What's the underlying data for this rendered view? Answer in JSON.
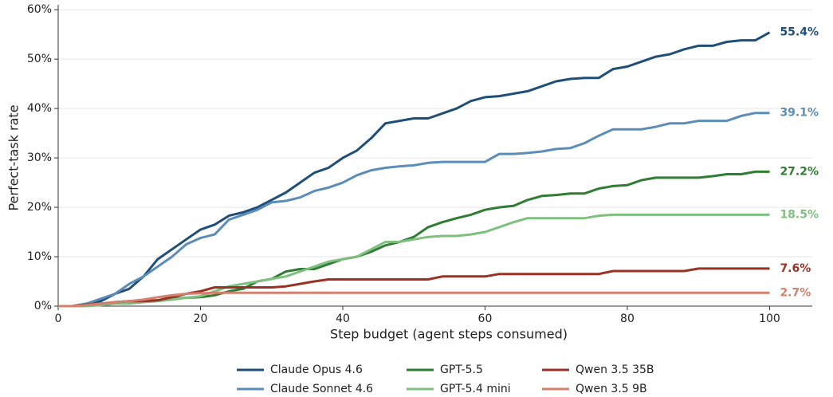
{
  "chart_data": {
    "type": "line",
    "xlabel": "Step budget (agent steps consumed)",
    "ylabel": "Perfect-task rate",
    "xlim": [
      0,
      106
    ],
    "ylim": [
      0,
      61
    ],
    "xticks": [
      0,
      20,
      40,
      60,
      80,
      100
    ],
    "yticks": [
      {
        "value": 0,
        "label": "0%"
      },
      {
        "value": 10,
        "label": "10%"
      },
      {
        "value": 20,
        "label": "20%"
      },
      {
        "value": 30,
        "label": "30%"
      },
      {
        "value": 40,
        "label": "40%"
      },
      {
        "value": 50,
        "label": "50%"
      },
      {
        "value": 60,
        "label": "60%"
      }
    ],
    "grid": true,
    "legend": "bottom",
    "x": [
      0,
      2,
      4,
      6,
      8,
      10,
      12,
      14,
      16,
      18,
      20,
      22,
      24,
      26,
      28,
      30,
      32,
      34,
      36,
      38,
      40,
      42,
      44,
      46,
      48,
      50,
      52,
      54,
      56,
      58,
      60,
      62,
      64,
      66,
      68,
      70,
      72,
      74,
      76,
      78,
      80,
      82,
      84,
      86,
      88,
      90,
      92,
      94,
      96,
      98,
      100
    ],
    "series": [
      {
        "name": "Claude Opus 4.6",
        "color": "#1f4e79",
        "end_label": "55.4%",
        "values": [
          0,
          0,
          0.5,
          1,
          2.5,
          3.5,
          6,
          9.5,
          11.5,
          13.5,
          15.5,
          16.5,
          18.3,
          19,
          20,
          21.5,
          23,
          25,
          27,
          28,
          30,
          31.5,
          34,
          37,
          37.5,
          38,
          38,
          39,
          40,
          41.5,
          42.3,
          42.5,
          43,
          43.5,
          44.5,
          45.5,
          46,
          46.2,
          46.2,
          48,
          48.5,
          49.5,
          50.5,
          51,
          52,
          52.7,
          52.7,
          53.5,
          53.8,
          53.8,
          55.4
        ]
      },
      {
        "name": "Claude Sonnet 4.6",
        "color": "#5b8db8",
        "end_label": "39.1%",
        "values": [
          0,
          0,
          0.5,
          1.5,
          2.5,
          4.5,
          6,
          8,
          10,
          12.5,
          13.8,
          14.5,
          17.5,
          18.5,
          19.5,
          21,
          21.3,
          22,
          23.3,
          24,
          25,
          26.5,
          27.5,
          28,
          28.3,
          28.5,
          29,
          29.2,
          29.2,
          29.2,
          29.2,
          30.8,
          30.8,
          31,
          31.3,
          31.8,
          32,
          33,
          34.5,
          35.8,
          35.8,
          35.8,
          36.3,
          37,
          37,
          37.5,
          37.5,
          37.5,
          38.5,
          39.1,
          39.1
        ]
      },
      {
        "name": "GPT-5.5",
        "color": "#2e7d32",
        "end_label": "27.2%",
        "values": [
          0,
          0,
          0.3,
          0.5,
          0.8,
          1,
          1,
          1.2,
          1.5,
          1.7,
          1.8,
          2.2,
          3,
          3.5,
          5,
          5.5,
          7,
          7.5,
          7.5,
          8.5,
          9.5,
          10,
          11,
          12.3,
          13,
          14,
          16,
          17,
          17.8,
          18.5,
          19.5,
          20,
          20.3,
          21.5,
          22.3,
          22.5,
          22.8,
          22.8,
          23.8,
          24.3,
          24.5,
          25.5,
          26,
          26,
          26,
          26,
          26.3,
          26.7,
          26.7,
          27.2,
          27.2
        ]
      },
      {
        "name": "GPT-5.4 mini",
        "color": "#7fbf7f",
        "end_label": "18.5%",
        "values": [
          0,
          0,
          0,
          0.2,
          0.5,
          0.5,
          0.8,
          1,
          1.3,
          1.7,
          2,
          3,
          4,
          4.5,
          5,
          5.5,
          6,
          7,
          8,
          9,
          9.5,
          10,
          11.5,
          13,
          13,
          13.5,
          14,
          14.2,
          14.2,
          14.5,
          15,
          16,
          17,
          17.8,
          17.8,
          17.8,
          17.8,
          17.8,
          18.3,
          18.5,
          18.5,
          18.5,
          18.5,
          18.5,
          18.5,
          18.5,
          18.5,
          18.5,
          18.5,
          18.5,
          18.5
        ]
      },
      {
        "name": "Qwen 3.5 35B",
        "color": "#9b3024",
        "end_label": "7.6%",
        "values": [
          0,
          0,
          0.3,
          0.5,
          0.8,
          1,
          1,
          1.2,
          1.8,
          2.5,
          3,
          3.8,
          3.8,
          3.8,
          3.8,
          3.8,
          4,
          4.5,
          5,
          5.4,
          5.4,
          5.4,
          5.4,
          5.4,
          5.4,
          5.4,
          5.4,
          6,
          6,
          6,
          6,
          6.5,
          6.5,
          6.5,
          6.5,
          6.5,
          6.5,
          6.5,
          6.5,
          7.1,
          7.1,
          7.1,
          7.1,
          7.1,
          7.1,
          7.6,
          7.6,
          7.6,
          7.6,
          7.6,
          7.6
        ]
      },
      {
        "name": "Qwen 3.5 9B",
        "color": "#d4806f",
        "end_label": "2.7%",
        "values": [
          0,
          0,
          0.2,
          0.5,
          0.8,
          1,
          1.3,
          1.8,
          2.2,
          2.5,
          2.6,
          2.7,
          2.7,
          2.7,
          2.7,
          2.7,
          2.7,
          2.7,
          2.7,
          2.7,
          2.7,
          2.7,
          2.7,
          2.7,
          2.7,
          2.7,
          2.7,
          2.7,
          2.7,
          2.7,
          2.7,
          2.7,
          2.7,
          2.7,
          2.7,
          2.7,
          2.7,
          2.7,
          2.7,
          2.7,
          2.7,
          2.7,
          2.7,
          2.7,
          2.7,
          2.7,
          2.7,
          2.7,
          2.7,
          2.7,
          2.7
        ]
      }
    ]
  }
}
